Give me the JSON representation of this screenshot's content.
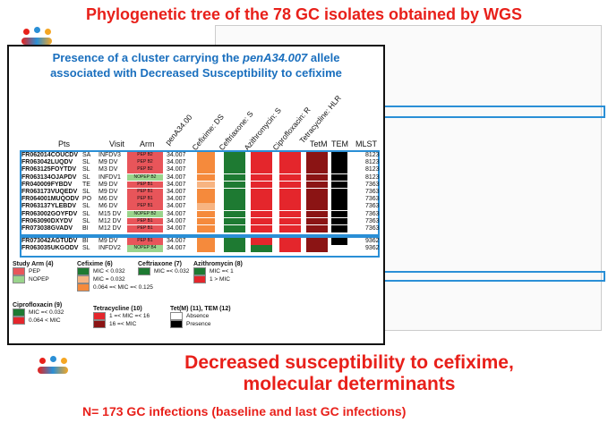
{
  "top_title": "Phylogenetic tree of the 78 GC isolates obtained by WGS",
  "inset": {
    "title_line1_pre": "Presence of a cluster carrying the ",
    "title_allele": "penA34.007",
    "title_line1_post": " allele",
    "title_line2": "associated with Decreased Susceptibility to cefixime",
    "headers": {
      "pts": "Pts",
      "visit": "Visit",
      "arm": "Arm",
      "pena": "penA34.00",
      "cefixime": "Cefixime: DS",
      "ceftriaxone": "Ceftriaxone: S",
      "azithromycin": "Azithromycin: S",
      "ciprofloxacin": "Ciprofloxacin: R",
      "tetracycline": "Tetracycline: HLR",
      "tetm": "TetM",
      "tem": "TEM",
      "mlst": "MLST"
    },
    "rows_group1": [
      {
        "id": "FR062014COUCDV",
        "site": "SA",
        "visit": "INFDV3",
        "arm": "PEP B2",
        "pena": "34.007",
        "mlst": "8123"
      },
      {
        "id": "FR063042LUQDV",
        "site": "SL",
        "visit": "M9 DV",
        "arm": "PEP B2",
        "pena": "34.007",
        "mlst": "8123"
      },
      {
        "id": "FR063125FOYTDV",
        "site": "SL",
        "visit": "M3 DV",
        "arm": "PEP B2",
        "pena": "34.007",
        "mlst": "8123"
      },
      {
        "id": "FR063134OJAPDV",
        "site": "SL",
        "visit": "INFDV1",
        "arm": "NOPEP B2",
        "pena": "34.007",
        "mlst": "8123"
      },
      {
        "id": "FR040009FYBDV",
        "site": "TE",
        "visit": "M9 DV",
        "arm": "PEP B1",
        "pena": "34.007",
        "mlst": "7363"
      },
      {
        "id": "FR063173VUQEDV",
        "site": "SL",
        "visit": "M9 DV",
        "arm": "PEP B1",
        "pena": "34.007",
        "mlst": "7363"
      },
      {
        "id": "FR064001MUQODV",
        "site": "PO",
        "visit": "M6 DV",
        "arm": "PEP B1",
        "pena": "34.007",
        "mlst": "7363"
      },
      {
        "id": "FR063137YLEBDV",
        "site": "SL",
        "visit": "M6 DV",
        "arm": "PEP B1",
        "pena": "34.007",
        "mlst": "7363"
      },
      {
        "id": "FR063002GOYFDV",
        "site": "SL",
        "visit": "M15 DV",
        "arm": "NOPEP B2",
        "pena": "34.007",
        "mlst": "7363"
      },
      {
        "id": "FR063090DXYDV",
        "site": "SL",
        "visit": "M12 DV",
        "arm": "PEP B1",
        "pena": "34.007",
        "mlst": "7363"
      },
      {
        "id": "FR073038GVADV",
        "site": "BI",
        "visit": "M12 DV",
        "arm": "PEP B1",
        "pena": "34.007",
        "mlst": "7363"
      }
    ],
    "rows_group2": [
      {
        "id": "FR073042AGTUDV",
        "site": "BI",
        "visit": "M9 DV",
        "arm": "PEP B1",
        "pena": "34.007",
        "mlst": "9362"
      },
      {
        "id": "FR063035UKGODV",
        "site": "SL",
        "visit": "INFDV2",
        "arm": "NOPEP B4",
        "pena": "34.007",
        "mlst": "9362"
      }
    ]
  },
  "legend": {
    "study_arm": {
      "title": "Study Arm (4)",
      "items": [
        "PEP",
        "NOPEP"
      ]
    },
    "cefixime": {
      "title": "Cefixime (6)",
      "items": [
        "MIC < 0.032",
        "MIC = 0.032",
        "0.064 =< MIC =< 0.125"
      ]
    },
    "ceftriaxone": {
      "title": "Ceftriaxone (7)",
      "items": [
        "MIC =< 0.032"
      ]
    },
    "azithromycin": {
      "title": "Azithromycin (8)",
      "items": [
        "MIC =< 1",
        "1 > MIC"
      ]
    },
    "ciprofloxacin": {
      "title": "Ciprofloxacin (9)",
      "items": [
        "MIC =< 0.032",
        "0.064 < MIC"
      ]
    },
    "tetracycline": {
      "title": "Tetracycline (10)",
      "items": [
        "1 =< MIC =< 16",
        "16 =< MIC"
      ]
    },
    "tet_tem": {
      "title": "Tet(M) (11), TEM (12)",
      "items": [
        "Absence",
        "Presence"
      ]
    }
  },
  "colors": {
    "title_red": "#e8201a",
    "inset_blue": "#1a6fbe",
    "box_blue": "#2a8fd6",
    "green": "#1e7a32",
    "red": "#e4262c",
    "orange": "#f58a3c",
    "light_orange": "#f7b482",
    "dark_red": "#8b1414",
    "black": "#000000",
    "pep": "#e8555a",
    "nopep": "#9ad48c"
  },
  "bottom": {
    "title_line1": "Decreased susceptibility to cefixime,",
    "title_line2": "molecular determinants",
    "subtitle": "N= 173 GC infections (baseline and last GC infections)"
  }
}
